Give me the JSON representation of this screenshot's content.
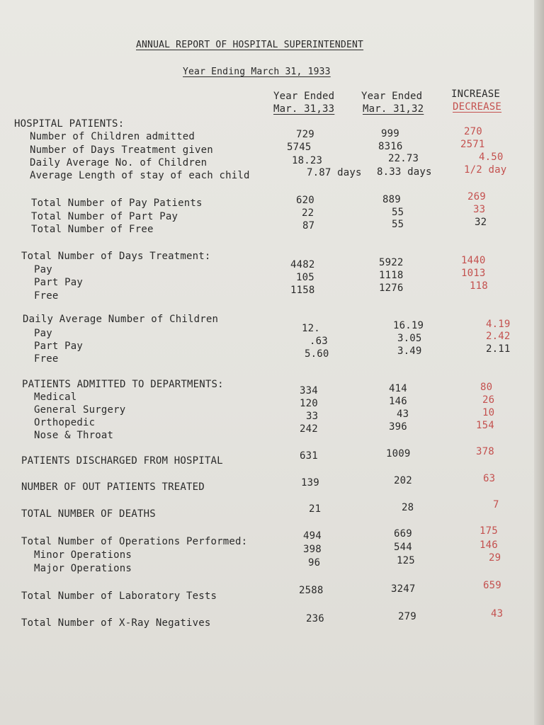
{
  "title": "ANNUAL REPORT OF HOSPITAL SUPERINTENDENT",
  "subtitle": "Year Ending March 31, 1933",
  "columns": {
    "c1_line1": "Year Ended",
    "c1_line2": "Mar. 31,33",
    "c2_line1": "Year Ended",
    "c2_line2": "Mar. 31,32",
    "c3_line1": "INCREASE",
    "c3_line2": "DECREASE"
  },
  "colors": {
    "ink": "#2a2a2a",
    "red_ink": "#c4514f",
    "paper": "#e6e5e0"
  },
  "sections": {
    "hospital_patients": {
      "heading": "HOSPITAL PATIENTS:",
      "rows": [
        {
          "label": "Number of Children admitted",
          "v33": "729",
          "v32": "999",
          "diff": "270"
        },
        {
          "label": "Number of Days Treatment given",
          "v33": "5745",
          "v32": "8316",
          "diff": "2571"
        },
        {
          "label": "Daily Average No. of Children",
          "v33": "18.23",
          "v32": "22.73",
          "diff": "4.50"
        },
        {
          "label": "Average Length of stay of each child",
          "v33": "7.87 days",
          "v32": "8.33 days",
          "diff": "1/2 day"
        }
      ]
    },
    "pay_totals": {
      "rows": [
        {
          "label": "Total Number of Pay Patients",
          "v33": "620",
          "v32": "889",
          "diff": "269"
        },
        {
          "label": "Total Number of Part Pay",
          "v33": "22",
          "v32": "55",
          "diff": "33"
        },
        {
          "label": "Total Number of Free",
          "v33": "87",
          "v32": "55",
          "diff": "32"
        }
      ]
    },
    "days_treatment": {
      "heading": "Total Number of Days Treatment:",
      "rows": [
        {
          "label": "Pay",
          "v33": "4482",
          "v32": "5922",
          "diff": "1440"
        },
        {
          "label": "Part Pay",
          "v33": "105",
          "v32": "1118",
          "diff": "1013"
        },
        {
          "label": "Free",
          "v33": "1158",
          "v32": "1276",
          "diff": "118"
        }
      ]
    },
    "daily_average": {
      "heading": "Daily Average Number of Children",
      "rows": [
        {
          "label": "Pay",
          "v33": "12.",
          "v32": "16.19",
          "diff": "4.19"
        },
        {
          "label": "Part Pay",
          "v33": ".63",
          "v32": "3.05",
          "diff": "2.42"
        },
        {
          "label": "Free",
          "v33": "5.60",
          "v32": "3.49",
          "diff": "2.11"
        }
      ]
    },
    "departments": {
      "heading": "PATIENTS ADMITTED TO DEPARTMENTS:",
      "rows": [
        {
          "label": "Medical",
          "v33": "334",
          "v32": "414",
          "diff": "80"
        },
        {
          "label": "General Surgery",
          "v33": "120",
          "v32": "146",
          "diff": "26"
        },
        {
          "label": "Orthopedic",
          "v33": "33",
          "v32": "43",
          "diff": "10"
        },
        {
          "label": "Nose & Throat",
          "v33": "242",
          "v32": "396",
          "diff": "154"
        }
      ]
    },
    "discharged": {
      "label": "PATIENTS DISCHARGED FROM HOSPITAL",
      "v33": "631",
      "v32": "1009",
      "diff": "378"
    },
    "out_patients": {
      "label": "NUMBER OF OUT PATIENTS TREATED",
      "v33": "139",
      "v32": "202",
      "diff": "63"
    },
    "deaths": {
      "label": "TOTAL NUMBER OF DEATHS",
      "v33": "21",
      "v32": "28",
      "diff": "7"
    },
    "operations": {
      "heading": "Total Number of Operations Performed:",
      "v33": "494",
      "v32": "669",
      "diff": "175",
      "rows": [
        {
          "label": "Minor Operations",
          "v33": "398",
          "v32": "544",
          "diff": "146"
        },
        {
          "label": "Major Operations",
          "v33": "96",
          "v32": "125",
          "diff": "29"
        }
      ]
    },
    "lab_tests": {
      "label": "Total Number of Laboratory Tests",
      "v33": "2588",
      "v32": "3247",
      "diff": "659"
    },
    "xray": {
      "label": "Total Number of X-Ray Negatives",
      "v33": "236",
      "v32": "279",
      "diff": "43"
    }
  }
}
